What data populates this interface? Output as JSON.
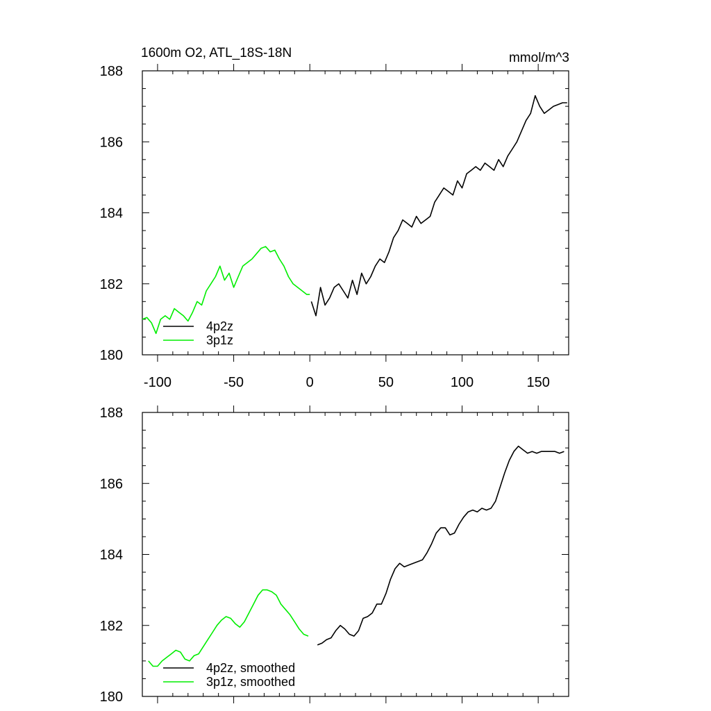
{
  "chart_data": [
    {
      "type": "line",
      "title": "1600m O2, ATL_18S-18N",
      "units": "mmol/m^3",
      "xlim": [
        -110,
        170
      ],
      "ylim": [
        180,
        188
      ],
      "xticks": [
        -100,
        -50,
        0,
        50,
        100,
        150
      ],
      "xtick_labels": [
        "-100",
        "-50",
        "0",
        "50",
        "100",
        "150"
      ],
      "yticks": [
        180,
        182,
        184,
        186,
        188
      ],
      "ytick_labels": [
        "180",
        "182",
        "184",
        "186",
        "188"
      ],
      "legend_position": "bottom-left",
      "series": [
        {
          "name": "4p2z",
          "color": "#000000",
          "x": [
            1,
            4,
            7,
            10,
            13,
            16,
            19,
            22,
            25,
            28,
            31,
            34,
            37,
            40,
            43,
            46,
            49,
            52,
            55,
            58,
            61,
            64,
            67,
            70,
            73,
            76,
            79,
            82,
            85,
            88,
            91,
            94,
            97,
            100,
            103,
            106,
            109,
            112,
            115,
            118,
            121,
            124,
            127,
            130,
            133,
            136,
            139,
            142,
            145,
            148,
            151,
            154,
            157,
            160,
            163,
            166,
            169
          ],
          "y": [
            181.5,
            181.1,
            181.9,
            181.4,
            181.6,
            181.9,
            182.0,
            181.8,
            181.6,
            182.1,
            181.7,
            182.3,
            182.0,
            182.2,
            182.5,
            182.7,
            182.6,
            182.9,
            183.3,
            183.5,
            183.8,
            183.7,
            183.6,
            183.9,
            183.7,
            183.8,
            183.9,
            184.3,
            184.5,
            184.7,
            184.6,
            184.5,
            184.9,
            184.7,
            185.1,
            185.2,
            185.3,
            185.2,
            185.4,
            185.3,
            185.2,
            185.5,
            185.3,
            185.6,
            185.8,
            186.0,
            186.3,
            186.6,
            186.8,
            187.3,
            187.0,
            186.8,
            186.9,
            187.0,
            187.05,
            187.1,
            187.1
          ]
        },
        {
          "name": "3p1z",
          "color": "#00ee00",
          "x": [
            -110,
            -107,
            -104,
            -101,
            -98,
            -95,
            -92,
            -89,
            -86,
            -83,
            -80,
            -77,
            -74,
            -71,
            -68,
            -65,
            -62,
            -59,
            -56,
            -53,
            -50,
            -47,
            -44,
            -41,
            -38,
            -35,
            -32,
            -29,
            -26,
            -23,
            -20,
            -17,
            -14,
            -11,
            -8,
            -5,
            -2,
            0
          ],
          "y": [
            181.0,
            181.05,
            180.9,
            180.6,
            181.0,
            181.1,
            181.0,
            181.3,
            181.2,
            181.1,
            180.95,
            181.2,
            181.5,
            181.4,
            181.8,
            182.0,
            182.2,
            182.5,
            182.1,
            182.3,
            181.9,
            182.2,
            182.5,
            182.6,
            182.7,
            182.85,
            183.0,
            183.05,
            182.9,
            182.95,
            182.7,
            182.5,
            182.2,
            182.0,
            181.9,
            181.8,
            181.7,
            181.7
          ]
        }
      ]
    },
    {
      "type": "line",
      "xlim": [
        -110,
        170
      ],
      "ylim": [
        180,
        188
      ],
      "xticks": [
        -100,
        -50,
        0,
        50,
        100,
        150
      ],
      "yticks": [
        180,
        182,
        184,
        186,
        188
      ],
      "ytick_labels": [
        "180",
        "182",
        "184",
        "186",
        "188"
      ],
      "legend_position": "bottom-left",
      "series": [
        {
          "name": "4p2z, smoothed",
          "color": "#000000",
          "x": [
            5,
            8,
            11,
            14,
            17,
            20,
            23,
            26,
            29,
            32,
            35,
            38,
            41,
            44,
            47,
            50,
            53,
            56,
            59,
            62,
            65,
            68,
            71,
            74,
            77,
            80,
            83,
            86,
            89,
            92,
            95,
            98,
            101,
            104,
            107,
            110,
            113,
            116,
            119,
            122,
            125,
            128,
            131,
            134,
            137,
            140,
            143,
            146,
            149,
            152,
            155,
            158,
            161,
            164,
            167
          ],
          "y": [
            181.45,
            181.5,
            181.6,
            181.65,
            181.85,
            182.0,
            181.9,
            181.75,
            181.7,
            181.85,
            182.2,
            182.25,
            182.35,
            182.6,
            182.6,
            182.9,
            183.3,
            183.6,
            183.75,
            183.65,
            183.7,
            183.75,
            183.8,
            183.85,
            184.05,
            184.3,
            184.6,
            184.75,
            184.75,
            184.55,
            184.6,
            184.85,
            185.05,
            185.2,
            185.25,
            185.2,
            185.3,
            185.25,
            185.3,
            185.5,
            185.9,
            186.3,
            186.65,
            186.9,
            187.05,
            186.95,
            186.85,
            186.9,
            186.85,
            186.9,
            186.9,
            186.9,
            186.9,
            186.85,
            186.9
          ]
        },
        {
          "name": "3p1z, smoothed",
          "color": "#00ee00",
          "x": [
            -106,
            -103,
            -100,
            -97,
            -94,
            -91,
            -88,
            -85,
            -82,
            -79,
            -76,
            -73,
            -70,
            -67,
            -64,
            -61,
            -58,
            -55,
            -52,
            -49,
            -46,
            -43,
            -40,
            -37,
            -34,
            -31,
            -28,
            -25,
            -22,
            -19,
            -16,
            -13,
            -10,
            -7,
            -4,
            -1
          ],
          "y": [
            181.0,
            180.85,
            180.85,
            181.0,
            181.1,
            181.2,
            181.3,
            181.25,
            181.05,
            181.0,
            181.15,
            181.2,
            181.4,
            181.6,
            181.8,
            182.0,
            182.15,
            182.25,
            182.2,
            182.05,
            181.95,
            182.1,
            182.35,
            182.6,
            182.85,
            183.0,
            183.0,
            182.95,
            182.85,
            182.6,
            182.45,
            182.3,
            182.1,
            181.9,
            181.75,
            181.7
          ]
        }
      ]
    }
  ]
}
